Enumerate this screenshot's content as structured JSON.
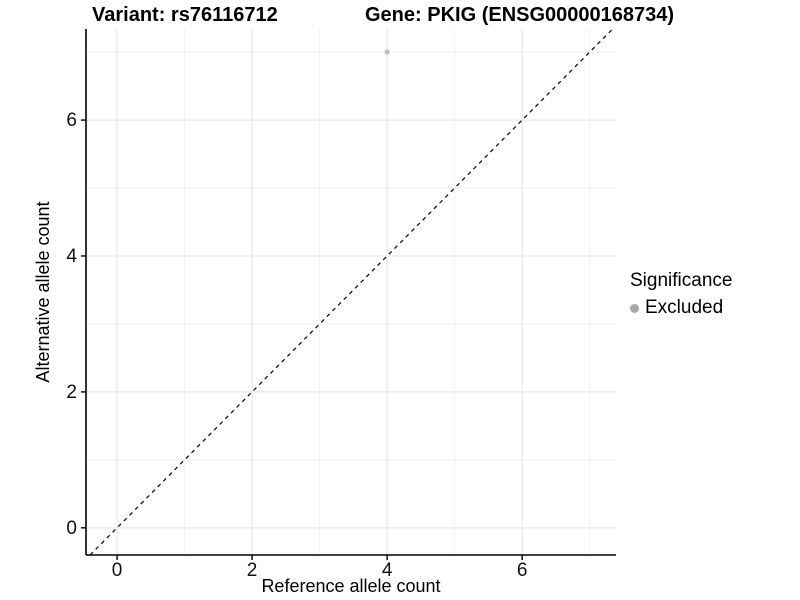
{
  "titles": {
    "variant": "Variant: rs76116712",
    "gene": "Gene: PKIG (ENSG00000168734)"
  },
  "legend": {
    "title": "Significance",
    "items": [
      {
        "label": "Excluded",
        "color": "#a9a9a9"
      }
    ]
  },
  "chart_data": {
    "type": "scatter",
    "xlabel": "Reference allele count",
    "ylabel": "Alternative allele count",
    "x_ticks": [
      0,
      2,
      4,
      6
    ],
    "y_ticks": [
      0,
      2,
      4,
      6
    ],
    "x_minor_ticks": [
      1,
      3,
      5,
      7
    ],
    "y_minor_ticks": [
      1,
      3,
      5,
      7
    ],
    "xlim": [
      -0.46,
      7.39
    ],
    "ylim": [
      -0.4,
      7.34
    ],
    "grid": true,
    "legend_position": "right",
    "series": [
      {
        "name": "Excluded",
        "color": "#bebebe",
        "points": [
          {
            "x": 4,
            "y": 7
          }
        ]
      }
    ],
    "reference_line": {
      "type": "dashed-identity",
      "slope": 1,
      "intercept": 0,
      "color": "#000000"
    }
  },
  "colors": {
    "background": "#ffffff",
    "grid_major": "#e4e4e4",
    "grid_minor": "#f1f1f1",
    "axis_line": "#000000",
    "tick_text": "#111111"
  }
}
